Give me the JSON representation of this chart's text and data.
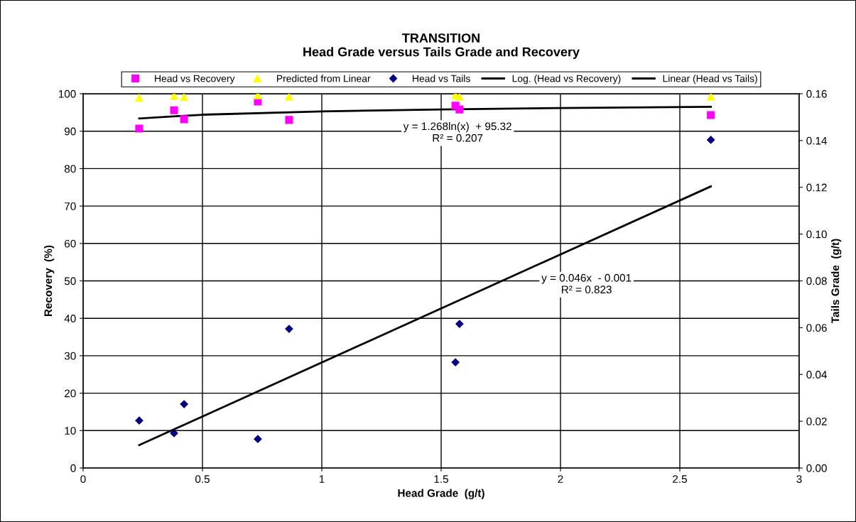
{
  "chart_data": {
    "type": "scatter",
    "title": "TRANSITION\nHead Grade versus Tails Grade and Recovery",
    "xlabel": "Head Grade  (g/t)",
    "ylabel": "Recovery  (%)",
    "y2label": "Tails Grade  (g/t)",
    "xlim": [
      0,
      3
    ],
    "xticks": [
      0,
      0.5,
      1,
      1.5,
      2,
      2.5,
      3
    ],
    "ylim": [
      0,
      100
    ],
    "yticks": [
      0,
      10,
      20,
      30,
      40,
      50,
      60,
      70,
      80,
      90,
      100
    ],
    "y2lim": [
      0,
      0.16
    ],
    "y2ticks": [
      {
        "value": 0,
        "label": "0.00"
      },
      {
        "value": 0.02,
        "label": "0.02"
      },
      {
        "value": 0.04,
        "label": "0.04"
      },
      {
        "value": 0.06,
        "label": "0.06"
      },
      {
        "value": 0.08,
        "label": "0.08"
      },
      {
        "value": 0.1,
        "label": "0.10"
      },
      {
        "value": 0.12,
        "label": "0.12"
      },
      {
        "value": 0.14,
        "label": "0.14"
      },
      {
        "value": 0.16,
        "label": "0.16"
      }
    ],
    "grid": true,
    "legend": "top",
    "series": [
      {
        "name": "Head vs Recovery",
        "marker": "square",
        "color": "#ff00ff",
        "x": [
          0.235,
          0.381,
          0.423,
          0.732,
          0.863,
          1.56,
          1.577,
          2.63
        ],
        "values": [
          90.7,
          95.6,
          93.2,
          97.9,
          93.0,
          96.8,
          95.8,
          94.3
        ]
      },
      {
        "name": "Predicted from Linear",
        "marker": "triangle",
        "color": "#ffff00",
        "x": [
          0.235,
          0.381,
          0.423,
          0.732,
          0.863,
          1.56,
          1.577,
          2.63
        ],
        "values": [
          98.9,
          99.4,
          99.1,
          99.6,
          99.2,
          99.6,
          99.2,
          99.2
        ]
      },
      {
        "name": "Head vs Tails",
        "marker": "diamond",
        "color": "#000080",
        "axis": "y2",
        "x": [
          0.235,
          0.381,
          0.423,
          0.732,
          0.863,
          1.56,
          1.577,
          2.63
        ],
        "values": [
          0.0203,
          0.0149,
          0.0273,
          0.0124,
          0.0595,
          0.0452,
          0.0616,
          0.1403
        ]
      },
      {
        "name": "Log. (Head vs Recovery)",
        "type": "line",
        "marker": "none",
        "color": "#000000",
        "x": [
          0.235,
          0.5,
          1,
          1.5,
          2,
          2.63
        ],
        "values": [
          93.4,
          94.4,
          95.3,
          95.8,
          96.2,
          96.5
        ]
      },
      {
        "name": "Linear (Head vs Tails)",
        "type": "line",
        "marker": "none",
        "color": "#000000",
        "axis": "y2",
        "x": [
          0.235,
          2.63
        ],
        "values": [
          0.0098,
          0.1204
        ]
      }
    ],
    "annotations": [
      "y = 1.268ln(x)  + 95.32\nR² = 0.207",
      "y = 0.046x  - 0.001\nR² = 0.823"
    ]
  }
}
